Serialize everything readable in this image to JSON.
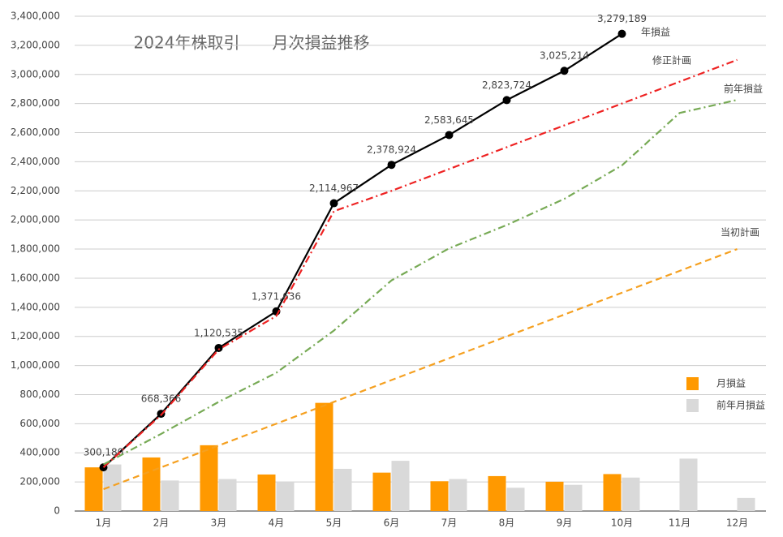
{
  "chart_data": {
    "type": "combo",
    "title": "2024年株取引　　月次損益推移",
    "categories": [
      "1月",
      "2月",
      "3月",
      "4月",
      "5月",
      "6月",
      "7月",
      "8月",
      "9月",
      "10月",
      "11月",
      "12月"
    ],
    "ylim": [
      0,
      3400000
    ],
    "yticks": [
      0,
      {
        "value": 200000,
        "label": "200,000"
      },
      {
        "value": 400000,
        "label": "400,000"
      },
      {
        "value": 600000,
        "label": "600,000"
      },
      {
        "value": 800000,
        "label": "800,000"
      },
      {
        "value": 1000000,
        "label": "1,000,000"
      },
      {
        "value": 1200000,
        "label": "1,200,000"
      },
      {
        "value": 1400000,
        "label": "1,400,000"
      },
      {
        "value": 1600000,
        "label": "1,600,000"
      },
      {
        "value": 1800000,
        "label": "1,800,000"
      },
      {
        "value": 2000000,
        "label": "2,000,000"
      },
      {
        "value": 2200000,
        "label": "2,200,000"
      },
      {
        "value": 2400000,
        "label": "2,400,000"
      },
      {
        "value": 2600000,
        "label": "2,600,000"
      },
      {
        "value": 2800000,
        "label": "2,800,000"
      },
      {
        "value": 3000000,
        "label": "3,000,000"
      },
      {
        "value": 3200000,
        "label": "3,200,000"
      },
      {
        "value": 3400000,
        "label": "3,400,000"
      }
    ],
    "grid": true,
    "legend": "right",
    "series": [
      {
        "name": "月損益",
        "type": "bar",
        "color": "#ff9900",
        "legend": true,
        "values": [
          300180,
          368186,
          452169,
          251101,
          743331,
          263957,
          204721,
          240079,
          201490,
          253975,
          null,
          null
        ]
      },
      {
        "name": "前年月損益",
        "type": "bar",
        "color": "#d9d9d9",
        "legend": true,
        "values": [
          320000,
          210000,
          220000,
          200000,
          290000,
          345000,
          220000,
          160000,
          180000,
          230000,
          360000,
          90000
        ]
      },
      {
        "name": "年損益",
        "type": "line",
        "color": "#000000",
        "dash": "solid",
        "markers": true,
        "values": [
          300180,
          668366,
          1120535,
          1371636,
          2114967,
          2378924,
          2583645,
          2823724,
          3025214,
          3279189,
          null,
          null
        ],
        "value_labels": [
          "300,180",
          "668,366",
          "1,120,535",
          "1,371,636",
          "2,114,967",
          "2,378,924",
          "2,583,645",
          "2,823,724",
          "3,025,214",
          "3,279,189",
          null,
          null
        ]
      },
      {
        "name": "修正計画",
        "type": "line",
        "color": "#ee2222",
        "dash": "dashdot",
        "values": [
          300000,
          660000,
          1110000,
          1340000,
          2060000,
          2200000,
          2350000,
          2500000,
          2650000,
          2800000,
          2950000,
          3100000
        ]
      },
      {
        "name": "前年損益",
        "type": "line",
        "color": "#77aa55",
        "dash": "dashdot",
        "values": [
          320000,
          530000,
          750000,
          950000,
          1240000,
          1585000,
          1805000,
          1965000,
          2145000,
          2375000,
          2735000,
          2825000
        ]
      },
      {
        "name": "当初計画",
        "type": "line",
        "color": "#f5a020",
        "dash": "dashed",
        "values": [
          150000,
          300000,
          450000,
          600000,
          750000,
          900000,
          1050000,
          1200000,
          1350000,
          1500000,
          1650000,
          1800000
        ]
      }
    ]
  }
}
